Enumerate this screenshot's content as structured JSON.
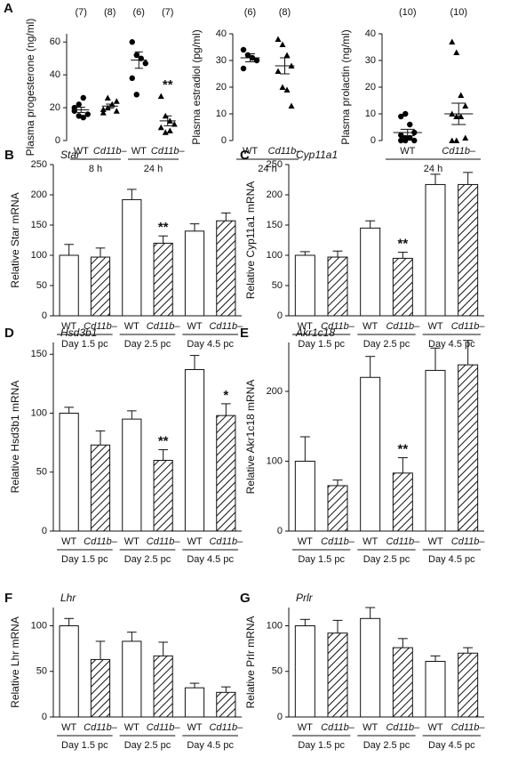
{
  "chart_data": [
    {
      "type": "dot",
      "panel": "A",
      "ylabel": "Plasma progesterone (ng/ml)",
      "ylim": [
        0,
        65
      ],
      "yticks": [
        0,
        20,
        40,
        60
      ],
      "categories": [
        "WT",
        "Cd11b–",
        "WT",
        "Cd11b–"
      ],
      "groups": [
        "8 h",
        "24 h"
      ],
      "n_labels": [
        "(7)",
        "(8)",
        "(6)",
        "(7)"
      ],
      "markers": [
        "circle",
        "triangle"
      ],
      "color": "#000000",
      "points": [
        [
          18,
          15,
          14,
          16,
          20,
          22,
          26
        ],
        [
          17,
          20,
          22,
          24,
          19,
          26,
          22,
          18
        ],
        [
          60,
          52,
          50,
          47,
          38,
          28
        ],
        [
          27,
          15,
          12,
          10,
          8,
          5,
          6
        ]
      ],
      "means": [
        18.7,
        21,
        49,
        12
      ],
      "sems": [
        1.6,
        1.2,
        5,
        3
      ],
      "value_annotations": [
        null,
        null,
        null,
        "**"
      ]
    },
    {
      "type": "dot",
      "ylabel": "Plasma estradiol (pg/ml)",
      "ylim": [
        0,
        40
      ],
      "yticks": [
        0,
        10,
        20,
        30,
        40
      ],
      "categories": [
        "WT",
        "Cd11b–"
      ],
      "groups": [
        "24 h"
      ],
      "n_labels": [
        "(6)",
        "(8)"
      ],
      "markers": [
        "circle",
        "triangle"
      ],
      "color": "#000000",
      "points": [
        [
          34,
          32,
          31,
          30,
          27,
          32
        ],
        [
          38,
          36,
          32,
          28,
          26,
          20,
          19,
          13
        ]
      ],
      "means": [
        31,
        28
      ],
      "sems": [
        1.5,
        3
      ],
      "value_annotations": [
        null,
        null
      ]
    },
    {
      "type": "dot",
      "ylabel": "Plasma prolactin (ng/ml)",
      "ylim": [
        0,
        40
      ],
      "yticks": [
        0,
        10,
        20,
        30,
        40
      ],
      "categories": [
        "WT",
        "Cd11b–"
      ],
      "groups": [
        "24 h"
      ],
      "n_labels": [
        "(10)",
        "(10)"
      ],
      "markers": [
        "circle",
        "triangle"
      ],
      "color": "#000000",
      "points": [
        [
          9,
          10,
          6,
          3,
          2,
          1,
          1,
          0,
          0,
          0
        ],
        [
          37,
          33,
          17,
          13,
          10,
          9,
          9,
          1,
          0,
          0
        ]
      ],
      "means": [
        3,
        10
      ],
      "sems": [
        1.2,
        4
      ],
      "value_annotations": [
        null,
        null
      ]
    },
    {
      "type": "bar",
      "panel": "B",
      "title": "Star",
      "ylabel": "Relative Star mRNA",
      "ylim": [
        0,
        250
      ],
      "yticks": [
        0,
        50,
        100,
        150,
        200,
        250
      ],
      "categories": [
        "WT",
        "Cd11b–",
        "WT",
        "Cd11b–",
        "WT",
        "Cd11b–"
      ],
      "groups": [
        "Day 1.5 pc",
        "Day 2.5 pc",
        "Day 4.5 pc"
      ],
      "values": [
        100,
        97,
        192,
        120,
        140,
        157
      ],
      "errors": [
        18,
        15,
        17,
        12,
        12,
        13
      ],
      "value_annotations": [
        null,
        null,
        null,
        "**",
        null,
        null
      ],
      "patterns": [
        "none",
        "hatch"
      ]
    },
    {
      "type": "bar",
      "panel": "C",
      "title": "Cyp11a1",
      "ylabel": "Relative Cyp11a1 mRNA",
      "ylim": [
        0,
        250
      ],
      "yticks": [
        0,
        50,
        100,
        150,
        200,
        250
      ],
      "categories": [
        "WT",
        "Cd11b–",
        "WT",
        "Cd11b–",
        "WT",
        "Cd11b–"
      ],
      "groups": [
        "Day 1.5 pc",
        "Day 2.5 pc",
        "Day 4.5 pc"
      ],
      "values": [
        100,
        97,
        145,
        95,
        217,
        217
      ],
      "errors": [
        6,
        10,
        12,
        10,
        17,
        20
      ],
      "value_annotations": [
        null,
        null,
        null,
        "**",
        null,
        null
      ],
      "patterns": [
        "none",
        "hatch"
      ]
    },
    {
      "type": "bar",
      "panel": "D",
      "title": "Hsd3b1",
      "ylabel": "Relative Hsd3b1 mRNA",
      "ylim": [
        0,
        160
      ],
      "yticks": [
        0,
        50,
        100,
        150
      ],
      "categories": [
        "WT",
        "Cd11b–",
        "WT",
        "Cd11b–",
        "WT",
        "Cd11b–"
      ],
      "groups": [
        "Day 1.5 pc",
        "Day 2.5 pc",
        "Day 4.5 pc"
      ],
      "values": [
        100,
        73,
        95,
        60,
        137,
        98
      ],
      "errors": [
        5,
        12,
        7,
        9,
        12,
        10
      ],
      "value_annotations": [
        null,
        null,
        null,
        "**",
        null,
        "*"
      ],
      "patterns": [
        "none",
        "hatch"
      ]
    },
    {
      "type": "bar",
      "panel": "E",
      "title": "Akr1c18",
      "ylabel": "Relative Akr1c18 mRNA",
      "ylim": [
        0,
        270
      ],
      "yticks": [
        0,
        100,
        200
      ],
      "categories": [
        "WT",
        "Cd11b–",
        "WT",
        "Cd11b–",
        "WT",
        "Cd11b–"
      ],
      "groups": [
        "Day 1.5 pc",
        "Day 2.5 pc",
        "Day 4.5 pc"
      ],
      "values": [
        100,
        65,
        220,
        83,
        230,
        238
      ],
      "errors": [
        35,
        8,
        30,
        22,
        32,
        35
      ],
      "value_annotations": [
        null,
        null,
        null,
        "**",
        null,
        null
      ],
      "patterns": [
        "none",
        "hatch"
      ]
    },
    {
      "type": "bar",
      "panel": "F",
      "title": "Lhr",
      "ylabel": "Relative Lhr mRNA",
      "ylim": [
        0,
        120
      ],
      "yticks": [
        0,
        50,
        100
      ],
      "categories": [
        "WT",
        "Cd11b–",
        "WT",
        "Cd11b–",
        "WT",
        "Cd11b–"
      ],
      "groups": [
        "Day 1.5 pc",
        "Day 2.5 pc",
        "Day 4.5 pc"
      ],
      "values": [
        100,
        63,
        83,
        67,
        32,
        27
      ],
      "errors": [
        8,
        20,
        10,
        15,
        5,
        6
      ],
      "value_annotations": [
        null,
        null,
        null,
        null,
        null,
        null
      ],
      "patterns": [
        "none",
        "hatch"
      ]
    },
    {
      "type": "bar",
      "panel": "G",
      "title": "Prlr",
      "ylabel": "Relative Prlr mRNA",
      "ylim": [
        0,
        120
      ],
      "yticks": [
        0,
        50,
        100
      ],
      "categories": [
        "WT",
        "Cd11b–",
        "WT",
        "Cd11b–",
        "WT",
        "Cd11b–"
      ],
      "groups": [
        "Day 1.5 pc",
        "Day 2.5 pc",
        "Day 4.5 pc"
      ],
      "values": [
        100,
        92,
        108,
        76,
        61,
        70
      ],
      "errors": [
        7,
        14,
        12,
        10,
        6,
        6
      ],
      "value_annotations": [
        null,
        null,
        null,
        null,
        null,
        null
      ],
      "patterns": [
        "none",
        "hatch"
      ]
    }
  ]
}
